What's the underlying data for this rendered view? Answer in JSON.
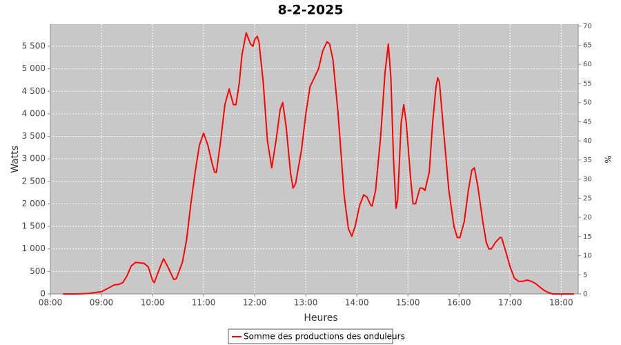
{
  "chart_data": {
    "type": "line",
    "title": "8-2-2025",
    "xlabel": "Heures",
    "ylabel": "Watts",
    "y2label": "%",
    "x": [
      "08:15",
      "08:30",
      "08:45",
      "09:00",
      "09:10",
      "09:15",
      "09:20",
      "09:25",
      "09:30",
      "09:35",
      "09:40",
      "09:45",
      "09:50",
      "09:55",
      "10:00",
      "10:02",
      "10:10",
      "10:13",
      "10:18",
      "10:25",
      "10:28",
      "10:35",
      "10:40",
      "10:45",
      "10:50",
      "10:55",
      "11:00",
      "11:05",
      "11:10",
      "11:13",
      "11:15",
      "11:20",
      "11:25",
      "11:30",
      "11:35",
      "11:38",
      "11:42",
      "11:45",
      "11:50",
      "11:55",
      "11:58",
      "12:00",
      "12:03",
      "12:05",
      "12:10",
      "12:15",
      "12:20",
      "12:25",
      "12:30",
      "12:33",
      "12:37",
      "12:42",
      "12:45",
      "12:48",
      "12:55",
      "13:00",
      "13:05",
      "13:10",
      "13:15",
      "13:20",
      "13:25",
      "13:28",
      "13:32",
      "13:38",
      "13:45",
      "13:50",
      "13:54",
      "13:58",
      "14:03",
      "14:08",
      "14:12",
      "14:16",
      "14:18",
      "14:22",
      "14:28",
      "14:33",
      "14:37",
      "14:40",
      "14:43",
      "14:46",
      "14:48",
      "14:52",
      "14:55",
      "14:58",
      "15:03",
      "15:06",
      "15:09",
      "15:14",
      "15:17",
      "15:20",
      "15:25",
      "15:29",
      "15:33",
      "15:35",
      "15:37",
      "15:42",
      "15:48",
      "15:54",
      "15:58",
      "16:01",
      "16:06",
      "16:11",
      "16:15",
      "16:18",
      "16:22",
      "16:28",
      "16:32",
      "16:35",
      "16:38",
      "16:43",
      "16:48",
      "16:50",
      "16:54",
      "17:00",
      "17:05",
      "17:10",
      "17:15",
      "17:20",
      "17:25",
      "17:30",
      "17:35",
      "17:40",
      "17:45",
      "17:50",
      "18:00",
      "18:15"
    ],
    "series": [
      {
        "name": "Somme des productions des onduleurs",
        "color": "#ff0000",
        "values": [
          0,
          0,
          10,
          50,
          150,
          200,
          210,
          250,
          400,
          620,
          700,
          690,
          680,
          600,
          300,
          250,
          650,
          780,
          600,
          320,
          340,
          700,
          1200,
          2000,
          2700,
          3300,
          3570,
          3300,
          2900,
          2700,
          2700,
          3400,
          4200,
          4550,
          4200,
          4200,
          4700,
          5300,
          5800,
          5550,
          5500,
          5650,
          5720,
          5600,
          4700,
          3400,
          2800,
          3400,
          4100,
          4250,
          3700,
          2700,
          2350,
          2450,
          3200,
          4000,
          4600,
          4800,
          5000,
          5400,
          5600,
          5550,
          5200,
          4000,
          2200,
          1450,
          1280,
          1500,
          1950,
          2200,
          2150,
          1980,
          1950,
          2300,
          3500,
          4900,
          5550,
          4800,
          3000,
          1900,
          2100,
          3800,
          4200,
          3800,
          2600,
          2000,
          2000,
          2350,
          2350,
          2300,
          2700,
          3800,
          4600,
          4800,
          4700,
          3600,
          2300,
          1500,
          1250,
          1250,
          1600,
          2300,
          2750,
          2800,
          2400,
          1600,
          1150,
          1000,
          1000,
          1150,
          1250,
          1250,
          1000,
          600,
          350,
          280,
          280,
          310,
          280,
          230,
          150,
          80,
          30,
          0,
          0,
          0
        ]
      }
    ],
    "xlim": [
      "08:00",
      "18:20"
    ],
    "xticks": [
      "08:00",
      "09:00",
      "10:00",
      "11:00",
      "12:00",
      "13:00",
      "14:00",
      "15:00",
      "16:00",
      "17:00",
      "18:00"
    ],
    "ylim": [
      0,
      5990
    ],
    "yticks": [
      0,
      500,
      {
        "value": 1000,
        "label": "1 000"
      },
      {
        "value": 1500,
        "label": "1 500"
      },
      {
        "value": 2000,
        "label": "2 000"
      },
      {
        "value": 2500,
        "label": "2 500"
      },
      {
        "value": 3000,
        "label": "3 000"
      },
      {
        "value": 3500,
        "label": "3 500"
      },
      {
        "value": 4000,
        "label": "4 000"
      },
      {
        "value": 4500,
        "label": "4 500"
      },
      {
        "value": 5000,
        "label": "5 000"
      },
      {
        "value": 5500,
        "label": "5 500"
      }
    ],
    "y2lim": [
      0,
      70.5
    ],
    "y2ticks": [
      0,
      5,
      10,
      15,
      20,
      25,
      30,
      35,
      40,
      45,
      50,
      55,
      60,
      65,
      70
    ],
    "grid": true,
    "legend": "bottom",
    "background": "#c8c8c8"
  }
}
